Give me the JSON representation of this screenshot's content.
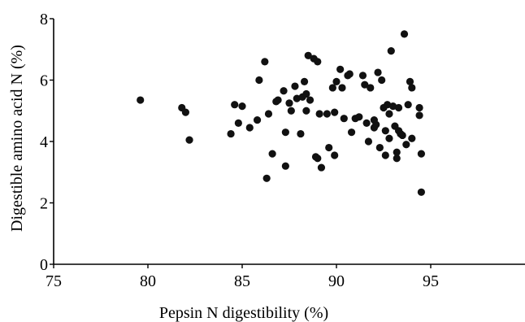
{
  "chart_data": {
    "type": "scatter",
    "title": "",
    "xlabel": "Pepsin N digestibility (%)",
    "ylabel": "Digestible amino acid N (%)",
    "xlim": [
      75,
      100
    ],
    "ylim": [
      0,
      8
    ],
    "xticks": [
      75,
      80,
      85,
      90,
      95
    ],
    "yticks": [
      0,
      2,
      4,
      6,
      8
    ],
    "grid": false,
    "legend": "none",
    "point_color": "#111111",
    "series": [
      {
        "points": [
          [
            79.6,
            5.35
          ],
          [
            81.8,
            5.1
          ],
          [
            82.0,
            4.95
          ],
          [
            82.2,
            4.05
          ],
          [
            84.4,
            4.25
          ],
          [
            84.6,
            5.2
          ],
          [
            84.8,
            4.6
          ],
          [
            85.0,
            5.15
          ],
          [
            85.4,
            4.45
          ],
          [
            85.8,
            4.7
          ],
          [
            85.9,
            6.0
          ],
          [
            86.2,
            6.6
          ],
          [
            86.3,
            2.8
          ],
          [
            86.4,
            4.9
          ],
          [
            86.6,
            3.6
          ],
          [
            86.8,
            5.3
          ],
          [
            86.9,
            5.35
          ],
          [
            87.2,
            5.65
          ],
          [
            87.3,
            4.3
          ],
          [
            87.3,
            3.2
          ],
          [
            87.5,
            5.25
          ],
          [
            87.6,
            5.0
          ],
          [
            87.8,
            5.8
          ],
          [
            87.9,
            5.4
          ],
          [
            88.1,
            4.25
          ],
          [
            88.2,
            5.45
          ],
          [
            88.3,
            5.95
          ],
          [
            88.4,
            5.0
          ],
          [
            88.4,
            5.55
          ],
          [
            88.5,
            6.8
          ],
          [
            88.6,
            5.35
          ],
          [
            88.8,
            6.7
          ],
          [
            88.9,
            3.5
          ],
          [
            89.0,
            6.6
          ],
          [
            89.0,
            3.45
          ],
          [
            89.1,
            4.9
          ],
          [
            89.2,
            3.15
          ],
          [
            89.5,
            4.9
          ],
          [
            89.6,
            3.8
          ],
          [
            89.8,
            5.75
          ],
          [
            89.9,
            3.55
          ],
          [
            89.9,
            4.95
          ],
          [
            90.0,
            5.95
          ],
          [
            90.2,
            6.35
          ],
          [
            90.3,
            5.75
          ],
          [
            90.4,
            4.75
          ],
          [
            90.6,
            6.15
          ],
          [
            90.7,
            6.2
          ],
          [
            90.8,
            4.3
          ],
          [
            91.0,
            4.75
          ],
          [
            91.2,
            4.8
          ],
          [
            91.4,
            6.15
          ],
          [
            91.5,
            5.85
          ],
          [
            91.6,
            4.6
          ],
          [
            91.7,
            4.0
          ],
          [
            91.8,
            5.75
          ],
          [
            92.0,
            4.45
          ],
          [
            92.0,
            4.7
          ],
          [
            92.1,
            4.55
          ],
          [
            92.2,
            6.25
          ],
          [
            92.3,
            3.8
          ],
          [
            92.4,
            6.0
          ],
          [
            92.5,
            5.1
          ],
          [
            92.6,
            3.55
          ],
          [
            92.6,
            4.35
          ],
          [
            92.7,
            5.2
          ],
          [
            92.8,
            4.9
          ],
          [
            92.8,
            4.1
          ],
          [
            92.9,
            6.95
          ],
          [
            93.0,
            5.15
          ],
          [
            93.1,
            4.5
          ],
          [
            93.2,
            3.45
          ],
          [
            93.2,
            3.65
          ],
          [
            93.3,
            4.35
          ],
          [
            93.3,
            5.1
          ],
          [
            93.4,
            4.25
          ],
          [
            93.5,
            4.2
          ],
          [
            93.6,
            7.5
          ],
          [
            93.7,
            3.9
          ],
          [
            93.8,
            5.2
          ],
          [
            93.9,
            5.95
          ],
          [
            94.0,
            5.75
          ],
          [
            94.0,
            4.1
          ],
          [
            94.4,
            5.1
          ],
          [
            94.4,
            4.85
          ],
          [
            94.5,
            3.6
          ],
          [
            94.5,
            2.35
          ]
        ]
      }
    ]
  }
}
